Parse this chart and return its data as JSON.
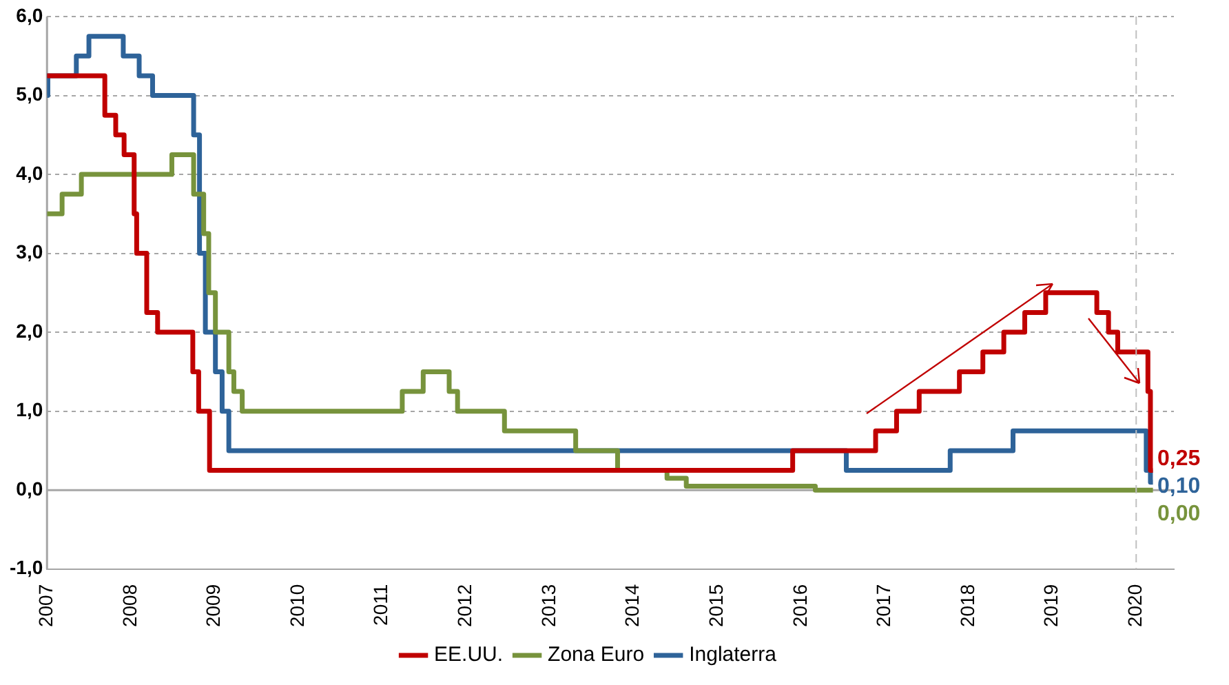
{
  "chart_data": {
    "type": "step",
    "series": [
      {
        "name": "EE.UU.",
        "color": "#c00000",
        "x": [
          2007,
          2007.69,
          2007.82,
          2007.92,
          2008.04,
          2008.07,
          2008.19,
          2008.32,
          2008.74,
          2008.81,
          2008.94,
          2015.9,
          2016.89,
          2017.14,
          2017.41,
          2017.89,
          2018.17,
          2018.42,
          2018.67,
          2018.92,
          2019.53,
          2019.67,
          2019.78,
          2020.14,
          2020.17,
          2020.2
        ],
        "values": [
          5.25,
          4.75,
          4.5,
          4.25,
          3.5,
          3.0,
          2.25,
          2.0,
          1.5,
          1.0,
          0.25,
          0.5,
          0.75,
          1.0,
          1.25,
          1.5,
          1.75,
          2.0,
          2.25,
          2.5,
          2.25,
          2.0,
          1.75,
          1.25,
          0.25,
          0.25
        ]
      },
      {
        "name": "Zona Euro",
        "color": "#77933c",
        "x": [
          2007,
          2007.18,
          2007.41,
          2008.49,
          2008.75,
          2008.87,
          2008.93,
          2009.01,
          2009.17,
          2009.23,
          2009.33,
          2011.24,
          2011.49,
          2011.8,
          2011.9,
          2012.46,
          2013.31,
          2013.81,
          2014.4,
          2014.63,
          2016.17,
          2020.2
        ],
        "values": [
          3.5,
          3.75,
          4.0,
          4.25,
          3.75,
          3.25,
          2.5,
          2.0,
          1.5,
          1.25,
          1.0,
          1.25,
          1.5,
          1.25,
          1.0,
          0.75,
          0.5,
          0.25,
          0.15,
          0.05,
          0.0,
          0.0
        ]
      },
      {
        "name": "Inglaterra",
        "color": "#2e6399",
        "x": [
          2007,
          2007.01,
          2007.35,
          2007.5,
          2007.91,
          2008.1,
          2008.26,
          2008.75,
          2008.82,
          2008.89,
          2009.01,
          2009.09,
          2009.17,
          2016.54,
          2017.78,
          2018.53,
          2020.12,
          2020.17,
          2020.2
        ],
        "values": [
          5.0,
          5.25,
          5.5,
          5.75,
          5.5,
          5.25,
          5.0,
          4.5,
          3.0,
          2.0,
          1.5,
          1.0,
          0.5,
          0.25,
          0.5,
          0.75,
          0.25,
          0.1,
          0.1
        ]
      }
    ],
    "xlim": [
      2007,
      2020.45
    ],
    "xticks": [
      2007,
      2008,
      2009,
      2010,
      2011,
      2012,
      2013,
      2014,
      2015,
      2016,
      2017,
      2018,
      2019,
      2020
    ],
    "ylim": [
      -1,
      6
    ],
    "yticks": [
      {
        "value": -1,
        "label": "-1,0"
      },
      {
        "value": 0,
        "label": "0,0"
      },
      {
        "value": 1,
        "label": "1,0"
      },
      {
        "value": 2,
        "label": "2,0"
      },
      {
        "value": 3,
        "label": "3,0"
      },
      {
        "value": 4,
        "label": "4,0"
      },
      {
        "value": 5,
        "label": "5,0"
      },
      {
        "value": 6,
        "label": "6,0"
      }
    ],
    "ref_lines": [
      {
        "axis": "x",
        "value": 2020,
        "color": "#bfbfbf",
        "line_style": "dashed"
      }
    ],
    "annotations": [
      "0,25",
      "0,00",
      "0,10"
    ],
    "grid": "y",
    "legend": "bottom",
    "marker": "none",
    "line_style": "solid"
  }
}
